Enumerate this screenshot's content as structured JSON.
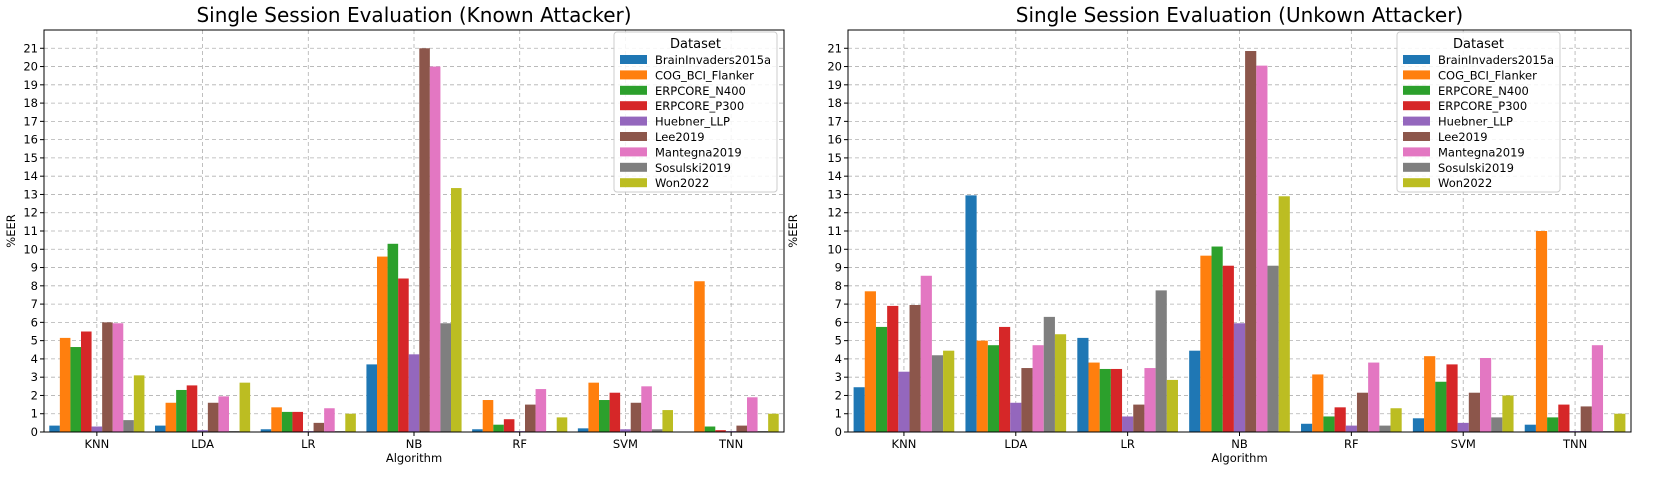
{
  "chart_data": [
    {
      "type": "bar",
      "title": "Single Session Evaluation (Known Attacker)",
      "xlabel": "Algorithm",
      "ylabel": "%EER",
      "ylim": [
        0,
        22
      ],
      "yticks": [
        0,
        1,
        2,
        3,
        4,
        5,
        6,
        7,
        8,
        9,
        10,
        11,
        12,
        13,
        14,
        15,
        16,
        17,
        18,
        19,
        20,
        21
      ],
      "grid": true,
      "legend_title": "Dataset",
      "legend_position": "top-right",
      "categories": [
        "KNN",
        "LDA",
        "LR",
        "NB",
        "RF",
        "SVM",
        "TNN"
      ],
      "series": [
        {
          "name": "BrainInvaders2015a",
          "color": "#1f77b4",
          "values": [
            0.35,
            0.35,
            0.15,
            3.7,
            0.15,
            0.2,
            0.0
          ]
        },
        {
          "name": "COG_BCI_Flanker",
          "color": "#ff7f0e",
          "values": [
            5.15,
            1.6,
            1.35,
            9.6,
            1.75,
            2.7,
            8.25
          ]
        },
        {
          "name": "ERPCORE_N400",
          "color": "#2ca02c",
          "values": [
            4.65,
            2.3,
            1.1,
            10.3,
            0.4,
            1.75,
            0.3
          ]
        },
        {
          "name": "ERPCORE_P300",
          "color": "#d62728",
          "values": [
            5.5,
            2.55,
            1.1,
            8.4,
            0.7,
            2.15,
            0.1
          ]
        },
        {
          "name": "Huebner_LLP",
          "color": "#9467bd",
          "values": [
            0.3,
            0.1,
            0.05,
            4.25,
            0.05,
            0.15,
            0.05
          ]
        },
        {
          "name": "Lee2019",
          "color": "#8c564b",
          "values": [
            6.0,
            1.6,
            0.5,
            21.0,
            1.5,
            1.6,
            0.35
          ]
        },
        {
          "name": "Mantegna2019",
          "color": "#e377c2",
          "values": [
            5.95,
            1.95,
            1.3,
            20.0,
            2.35,
            2.5,
            1.9
          ]
        },
        {
          "name": "Sosulski2019",
          "color": "#7f7f7f",
          "values": [
            0.65,
            0.05,
            0.05,
            5.95,
            0.05,
            0.15,
            0.05
          ]
        },
        {
          "name": "Won2022",
          "color": "#bcbd22",
          "values": [
            3.1,
            2.7,
            1.0,
            13.35,
            0.8,
            1.2,
            1.0
          ]
        }
      ]
    },
    {
      "type": "bar",
      "title": "Single Session Evaluation (Unkown Attacker)",
      "xlabel": "Algorithm",
      "ylabel": "%EER",
      "ylim": [
        0,
        22
      ],
      "yticks": [
        0,
        1,
        2,
        3,
        4,
        5,
        6,
        7,
        8,
        9,
        10,
        11,
        12,
        13,
        14,
        15,
        16,
        17,
        18,
        19,
        20,
        21
      ],
      "grid": true,
      "legend_title": "Dataset",
      "legend_position": "top-right",
      "categories": [
        "KNN",
        "LDA",
        "LR",
        "NB",
        "RF",
        "SVM",
        "TNN"
      ],
      "series": [
        {
          "name": "BrainInvaders2015a",
          "color": "#1f77b4",
          "values": [
            2.45,
            12.95,
            5.15,
            4.45,
            0.45,
            0.75,
            0.4
          ]
        },
        {
          "name": "COG_BCI_Flanker",
          "color": "#ff7f0e",
          "values": [
            7.7,
            5.0,
            3.8,
            9.65,
            3.15,
            4.15,
            11.0
          ]
        },
        {
          "name": "ERPCORE_N400",
          "color": "#2ca02c",
          "values": [
            5.75,
            4.75,
            3.45,
            10.15,
            0.85,
            2.75,
            0.8
          ]
        },
        {
          "name": "ERPCORE_P300",
          "color": "#d62728",
          "values": [
            6.9,
            5.75,
            3.45,
            9.1,
            1.35,
            3.7,
            1.5
          ]
        },
        {
          "name": "Huebner_LLP",
          "color": "#9467bd",
          "values": [
            3.3,
            1.6,
            0.85,
            5.95,
            0.35,
            0.5,
            0.05
          ]
        },
        {
          "name": "Lee2019",
          "color": "#8c564b",
          "values": [
            6.95,
            3.5,
            1.5,
            20.85,
            2.15,
            2.15,
            1.4
          ]
        },
        {
          "name": "Mantegna2019",
          "color": "#e377c2",
          "values": [
            8.55,
            4.75,
            3.5,
            20.05,
            3.8,
            4.05,
            4.75
          ]
        },
        {
          "name": "Sosulski2019",
          "color": "#7f7f7f",
          "values": [
            4.2,
            6.3,
            7.75,
            9.1,
            0.35,
            0.8,
            0.05
          ]
        },
        {
          "name": "Won2022",
          "color": "#bcbd22",
          "values": [
            4.45,
            5.35,
            2.85,
            12.9,
            1.3,
            2.0,
            1.0
          ]
        }
      ]
    }
  ]
}
